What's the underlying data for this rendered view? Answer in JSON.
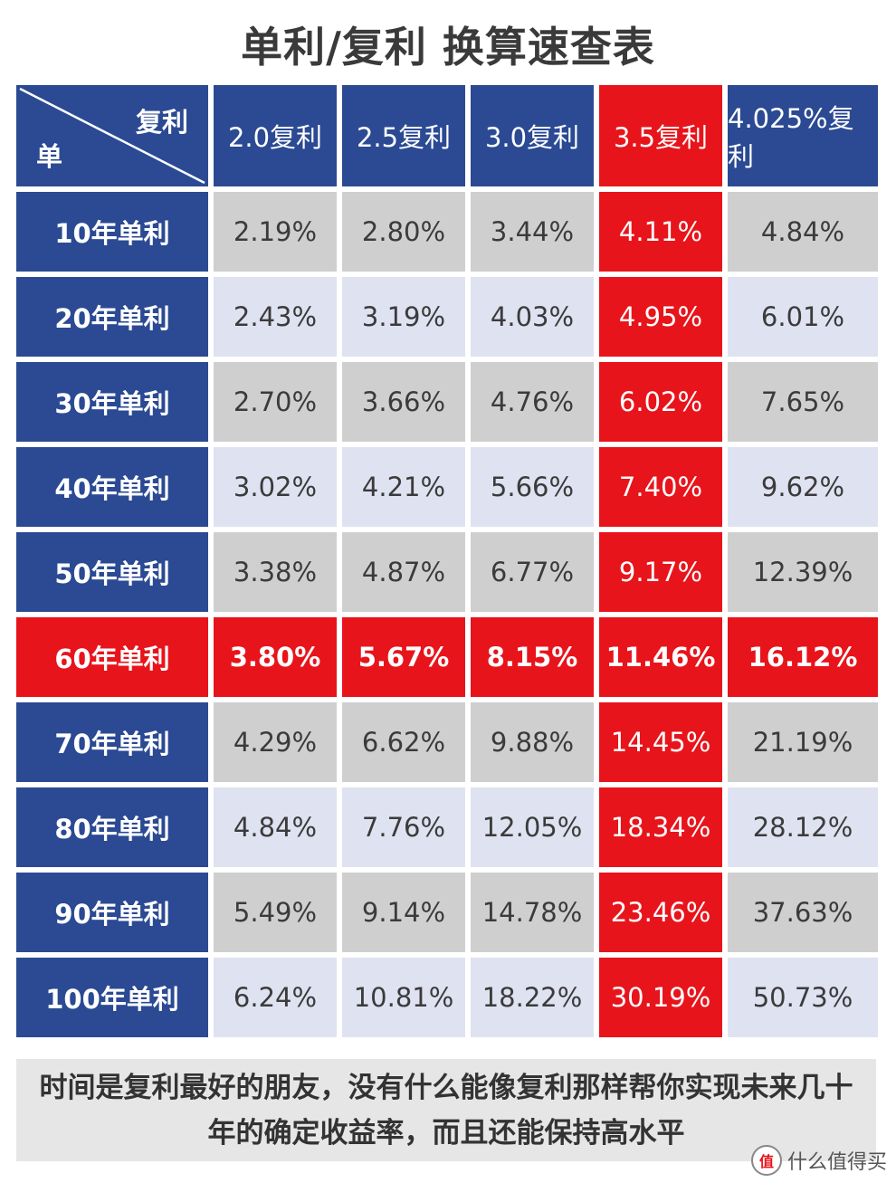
{
  "title": "单利/复利 换算速查表",
  "corner": {
    "top_label": "复利",
    "bottom_label": "单"
  },
  "columns": [
    "2.0复利",
    "2.5复利",
    "3.0复利",
    "3.5复利",
    "4.025%复利"
  ],
  "rows": [
    {
      "label": "10年单利",
      "values": [
        "2.19%",
        "2.80%",
        "3.44%",
        "4.11%",
        "4.84%"
      ]
    },
    {
      "label": "20年单利",
      "values": [
        "2.43%",
        "3.19%",
        "4.03%",
        "4.95%",
        "6.01%"
      ]
    },
    {
      "label": "30年单利",
      "values": [
        "2.70%",
        "3.66%",
        "4.76%",
        "6.02%",
        "7.65%"
      ]
    },
    {
      "label": "40年单利",
      "values": [
        "3.02%",
        "4.21%",
        "5.66%",
        "7.40%",
        "9.62%"
      ]
    },
    {
      "label": "50年单利",
      "values": [
        "3.38%",
        "4.87%",
        "6.77%",
        "9.17%",
        "12.39%"
      ]
    },
    {
      "label": "60年单利",
      "values": [
        "3.80%",
        "5.67%",
        "8.15%",
        "11.46%",
        "16.12%"
      ]
    },
    {
      "label": "70年单利",
      "values": [
        "4.29%",
        "6.62%",
        "9.88%",
        "14.45%",
        "21.19%"
      ]
    },
    {
      "label": "80年单利",
      "values": [
        "4.84%",
        "7.76%",
        "12.05%",
        "18.34%",
        "28.12%"
      ]
    },
    {
      "label": "90年单利",
      "values": [
        "5.49%",
        "9.14%",
        "14.78%",
        "23.46%",
        "37.63%"
      ]
    },
    {
      "label": "100年单利",
      "values": [
        "6.24%",
        "10.81%",
        "18.22%",
        "30.19%",
        "50.73%"
      ]
    }
  ],
  "highlight_column_index": 3,
  "highlight_row_index": 5,
  "note": "时间是复利最好的朋友，没有什么能像复利那样帮你实现未来几十年的确定收益率，而且还能保持高水平",
  "watermark": {
    "icon": "值",
    "text": "什么值得买"
  },
  "colors": {
    "header_blue": "#2b4a93",
    "highlight_red": "#e8141b",
    "cell_gray": "#cfcfcf",
    "cell_lavender": "#dfe2f1"
  }
}
